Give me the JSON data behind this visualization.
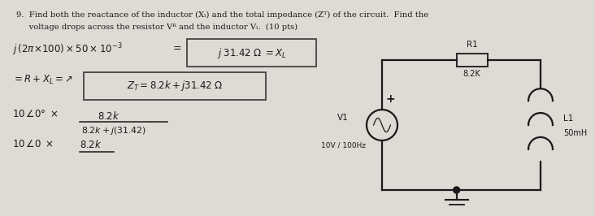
{
  "bg_color": "#dedad4",
  "title_line1": "9.  Find both the reactance of the inductor (Xₗ) and the total impedance (Zᵀ) of the circuit.  Find the",
  "title_line2": "     voltage drops across the resistor Vᴿ and the inductor Vₗ.  (10 pts)",
  "cc": "#1a1a1a",
  "circuit_R1": "R1",
  "circuit_R1_val": "8.2K",
  "circuit_L1": "L1",
  "circuit_L1_val": "50mH",
  "circuit_source": "V1",
  "circuit_source_val": "10V / 100Hz"
}
